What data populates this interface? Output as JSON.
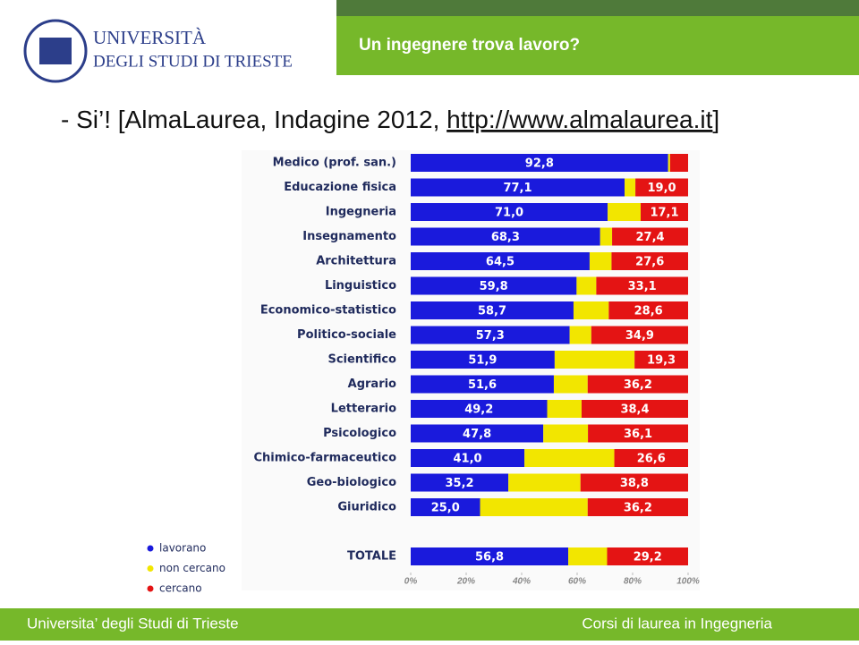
{
  "header": {
    "logo_line1": "UNIVERSITÀ",
    "logo_line2": "DEGLI STUDI DI TRIESTE",
    "title": "Un ingegnere trova lavoro?"
  },
  "subtitle": {
    "text": "- Si’! [AlmaLaurea, Indagine 2012, ",
    "link": "http://www.almalaurea.it",
    "close": "]"
  },
  "footer": {
    "left": "Universita’ degli Studi di Trieste",
    "right": "Corsi di laurea in Ingegneria"
  },
  "chart_data": {
    "type": "stacked-bar-horizontal",
    "categories": [
      "Medico (prof. san.)",
      "Educazione fisica",
      "Ingegneria",
      "Insegnamento",
      "Architettura",
      "Linguistico",
      "Economico-statistico",
      "Politico-sociale",
      "Scientifico",
      "Agrario",
      "Letterario",
      "Psicologico",
      "Chimico-farmaceutico",
      "Geo-biologico",
      "Giuridico",
      "TOTALE"
    ],
    "series": [
      {
        "name": "lavorano",
        "color": "#1a1adc",
        "values": [
          92.8,
          77.1,
          71.0,
          68.3,
          64.5,
          59.8,
          58.7,
          57.3,
          51.9,
          51.6,
          49.2,
          47.8,
          41.0,
          35.2,
          25.0,
          56.8
        ],
        "value_labels": [
          "92,8",
          "77,1",
          "71,0",
          "68,3",
          "64,5",
          "59,8",
          "58,7",
          "57,3",
          "51,9",
          "51,6",
          "49,2",
          "47,8",
          "41,0",
          "35,2",
          "25,0",
          "56,8"
        ]
      },
      {
        "name": "non cercano",
        "color": "#f2e600",
        "values": [
          0.7,
          3.9,
          11.9,
          4.3,
          7.9,
          7.1,
          12.7,
          7.8,
          28.8,
          12.2,
          12.4,
          16.1,
          32.4,
          26.0,
          38.8,
          14.0
        ]
      },
      {
        "name": "cercano",
        "color": "#e41414",
        "values": [
          6.5,
          19.0,
          17.1,
          27.4,
          27.6,
          33.1,
          28.6,
          34.9,
          19.3,
          36.2,
          38.4,
          36.1,
          26.6,
          38.8,
          36.2,
          29.2
        ],
        "value_labels": [
          null,
          "19,0",
          "17,1",
          "27,4",
          "27,6",
          "33,1",
          "28,6",
          "34,9",
          "19,3",
          "36,2",
          "38,4",
          "36,1",
          "26,6",
          "38,8",
          "36,2",
          "29,2"
        ]
      }
    ],
    "xlim": [
      0,
      100
    ],
    "xticks": [
      {
        "value": 0,
        "label": "0%"
      },
      {
        "value": 20,
        "label": "20%"
      },
      {
        "value": 40,
        "label": "40%"
      },
      {
        "value": 60,
        "label": "60%"
      },
      {
        "value": 80,
        "label": "80%"
      },
      {
        "value": 100,
        "label": "100%"
      }
    ],
    "grid": false
  }
}
